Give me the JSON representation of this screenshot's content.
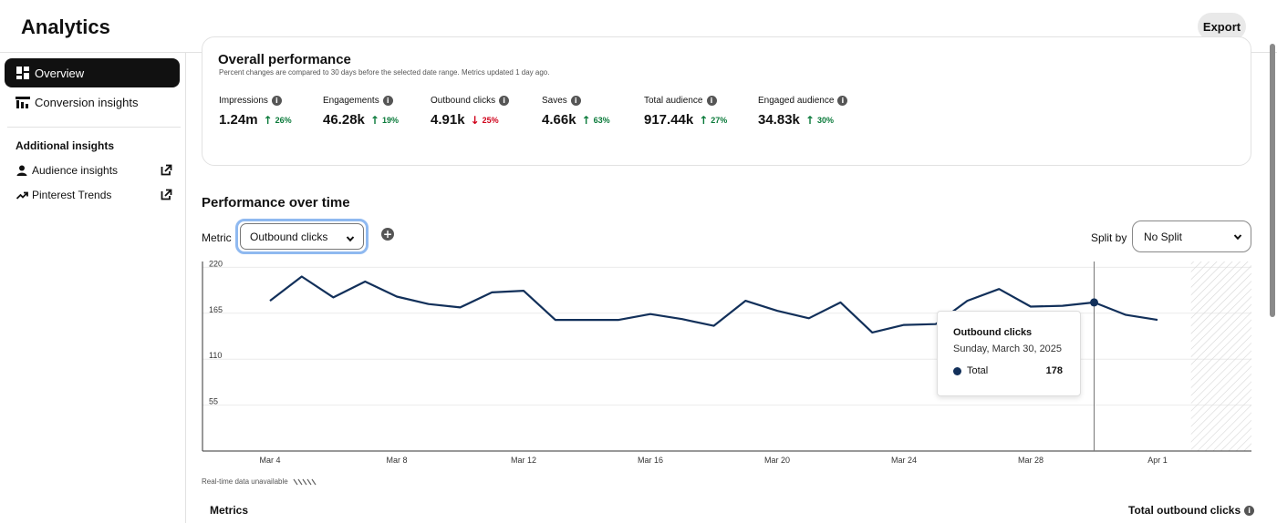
{
  "header": {
    "title": "Analytics",
    "export_label": "Export"
  },
  "sidebar": {
    "items": [
      {
        "label": "Overview",
        "icon": "dashboard-icon",
        "active": true
      },
      {
        "label": "Conversion insights",
        "icon": "funnel-chart-icon",
        "active": false
      }
    ],
    "additional_heading": "Additional insights",
    "links": [
      {
        "label": "Audience insights",
        "icon": "person-icon",
        "external": true
      },
      {
        "label": "Pinterest Trends",
        "icon": "trend-arrow-icon",
        "external": true
      }
    ]
  },
  "overall": {
    "title": "Overall performance",
    "subtitle": "Percent changes are compared to 30 days before the selected date range. Metrics updated 1 day ago.",
    "kpis": [
      {
        "label": "Impressions",
        "value": "1.24m",
        "change": "26%",
        "direction": "up"
      },
      {
        "label": "Engagements",
        "value": "46.28k",
        "change": "19%",
        "direction": "up"
      },
      {
        "label": "Outbound clicks",
        "value": "4.91k",
        "change": "25%",
        "direction": "down"
      },
      {
        "label": "Saves",
        "value": "4.66k",
        "change": "63%",
        "direction": "up"
      },
      {
        "label": "Total audience",
        "value": "917.44k",
        "change": "27%",
        "direction": "up"
      },
      {
        "label": "Engaged audience",
        "value": "34.83k",
        "change": "30%",
        "direction": "up"
      }
    ]
  },
  "performance": {
    "title": "Performance over time",
    "metric_label": "Metric",
    "metric_value": "Outbound clicks",
    "split_label": "Split by",
    "split_value": "No Split",
    "realtime_note": "Real-time data unavailable"
  },
  "tooltip": {
    "title": "Outbound clicks",
    "date": "Sunday, March 30, 2025",
    "series": "Total",
    "value": "178"
  },
  "bottom": {
    "metrics_heading": "Metrics",
    "total_heading": "Total outbound clicks"
  },
  "colors": {
    "line": "#12305a",
    "up": "#0a7a3a",
    "down": "#d0021b",
    "focus_ring": "#8fb9f0"
  },
  "chart_data": {
    "type": "line",
    "series": [
      {
        "name": "Total",
        "x": [
          "Mar 4",
          "Mar 5",
          "Mar 6",
          "Mar 7",
          "Mar 8",
          "Mar 9",
          "Mar 10",
          "Mar 11",
          "Mar 12",
          "Mar 13",
          "Mar 14",
          "Mar 15",
          "Mar 16",
          "Mar 17",
          "Mar 18",
          "Mar 19",
          "Mar 20",
          "Mar 21",
          "Mar 22",
          "Mar 23",
          "Mar 24",
          "Mar 25",
          "Mar 26",
          "Mar 27",
          "Mar 28",
          "Mar 29",
          "Mar 30",
          "Mar 31",
          "Apr 1"
        ],
        "values": [
          180,
          209,
          184,
          203,
          185,
          176,
          172,
          190,
          192,
          157,
          157,
          157,
          164,
          158,
          150,
          180,
          168,
          159,
          178,
          142,
          151,
          152,
          180,
          194,
          173,
          174,
          178,
          163,
          157
        ]
      }
    ],
    "x_ticks": [
      "Mar 4",
      "Mar 8",
      "Mar 12",
      "Mar 16",
      "Mar 20",
      "Mar 24",
      "Mar 28",
      "Apr 1"
    ],
    "y_ticks": [
      220,
      165,
      110,
      55
    ],
    "ylim": [
      0,
      227
    ],
    "grid": true,
    "highlight": "Mar 30",
    "realtime_unavailable_range": [
      "Apr 2",
      "Apr 3"
    ]
  }
}
